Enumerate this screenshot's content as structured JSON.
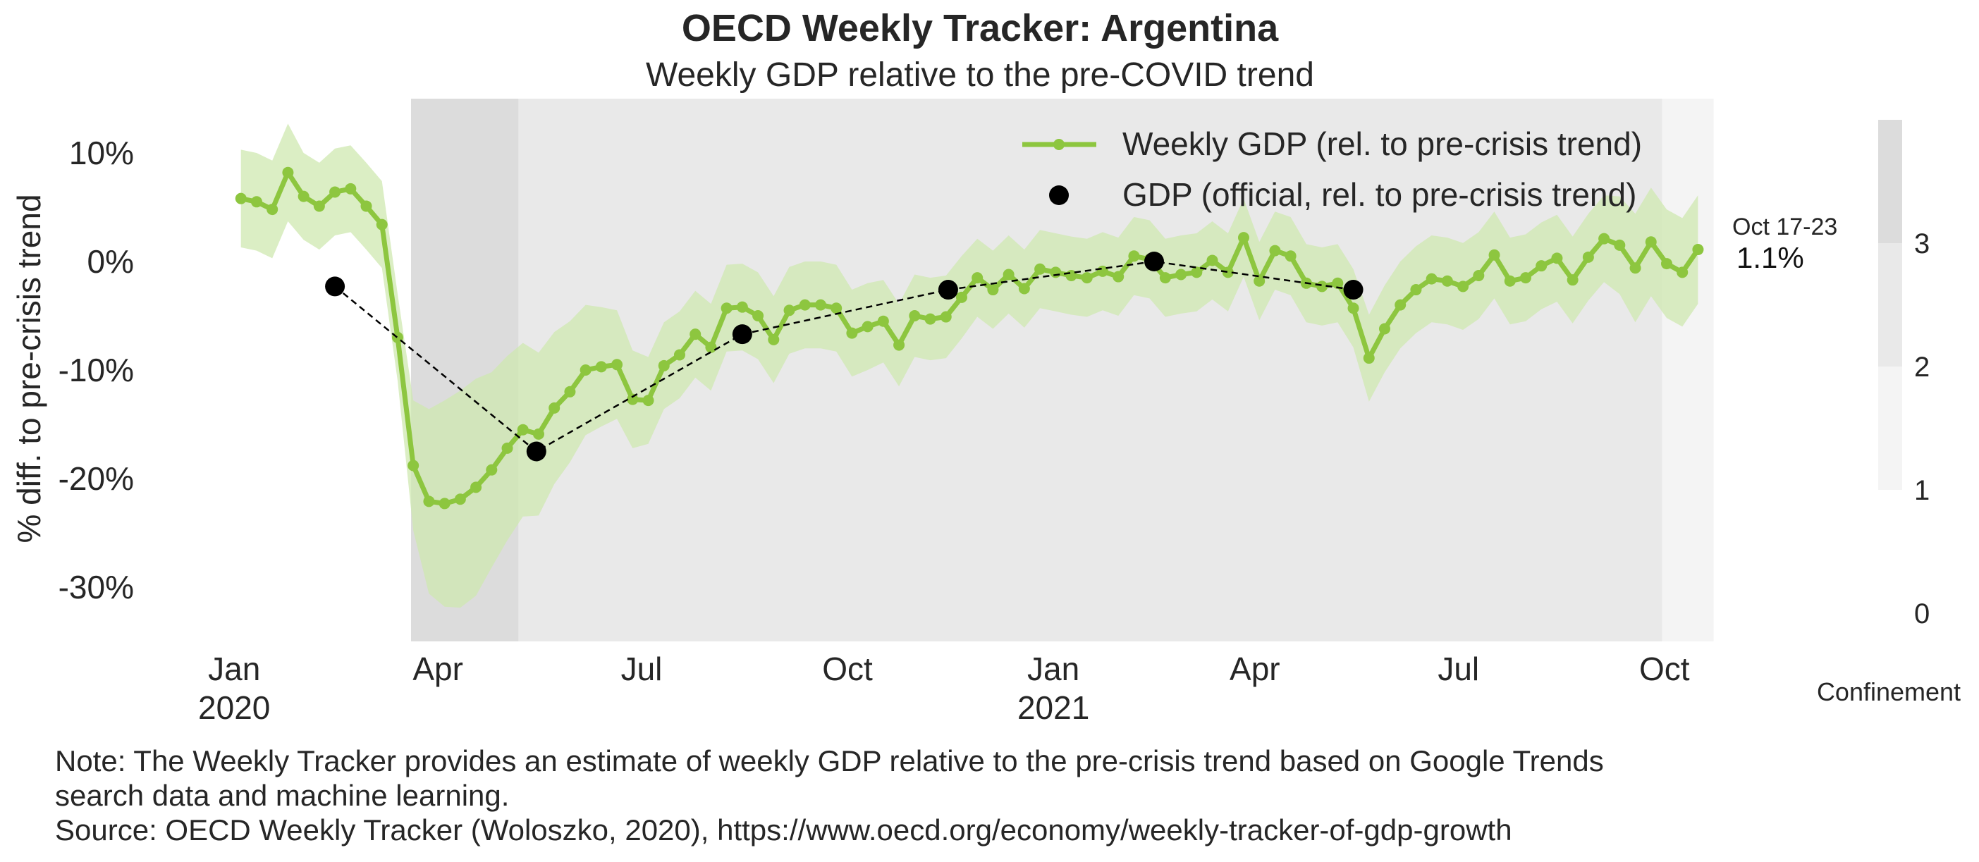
{
  "title": "OECD Weekly Tracker: Argentina",
  "subtitle": "Weekly GDP relative to the pre-COVID trend",
  "note_line1": "Note: The Weekly Tracker provides an estimate of weekly GDP relative to the pre-crisis trend based on Google Trends",
  "note_line2": "search data and machine learning.",
  "source": "Source: OECD Weekly Tracker (Woloszko, 2020), https://www.oecd.org/economy/weekly-tracker-of-gdp-growth",
  "last_point": {
    "date_label": "Oct 17-23",
    "value_label": "1.1%"
  },
  "colorbar": {
    "label": "Confinement",
    "ticks": [
      "0",
      "1",
      "2",
      "3"
    ]
  },
  "colors": {
    "weekly": "#8dc63f",
    "band": "#cfe8b0",
    "official": "#000000",
    "conf3": "#dcdcdc",
    "conf2": "#e9e9e9",
    "conf1": "#f4f4f4"
  },
  "chart_data": {
    "type": "line",
    "xlabel": "",
    "ylabel": "% diff. to pre-crisis trend",
    "ylim": [
      -35,
      15
    ],
    "yticks": [
      10,
      0,
      -10,
      -20,
      -30
    ],
    "ytick_labels": [
      "10%",
      "0%",
      "-10%",
      "-20%",
      "-30%"
    ],
    "xlim": [
      "2019-12-25",
      "2021-10-25"
    ],
    "xticks": [
      "2020-01-01",
      "2020-04-01",
      "2020-07-01",
      "2020-10-01",
      "2021-01-01",
      "2021-04-01",
      "2021-07-01",
      "2021-10-01"
    ],
    "xtick_labels": [
      [
        "Jan",
        "2020"
      ],
      [
        "Apr"
      ],
      [
        "Jul"
      ],
      [
        "Oct"
      ],
      [
        "Jan",
        "2021"
      ],
      [
        "Apr"
      ],
      [
        "Jul"
      ],
      [
        "Oct"
      ]
    ],
    "legend": {
      "placement": "top-right",
      "entries": [
        "Weekly GDP (rel. to pre-crisis trend)",
        "GDP (official, rel. to pre-crisis trend)"
      ]
    },
    "confinement_periods": [
      {
        "start": "2020-03-20",
        "end": "2020-05-07",
        "level": 3
      },
      {
        "start": "2020-05-07",
        "end": "2021-09-30",
        "level": 2
      },
      {
        "start": "2021-09-30",
        "end": "2021-10-23",
        "level": 1
      }
    ],
    "weekly_start": "2020-01-04",
    "weekly_step_days": 7,
    "weekly_values": [
      5.8,
      5.5,
      4.8,
      8.2,
      6.0,
      5.1,
      6.4,
      6.7,
      5.1,
      3.4,
      -7.0,
      -18.8,
      -22.1,
      -22.3,
      -21.9,
      -20.8,
      -19.2,
      -17.2,
      -15.5,
      -15.9,
      -13.5,
      -12.0,
      -10.0,
      -9.7,
      -9.5,
      -12.7,
      -12.8,
      -9.6,
      -8.6,
      -6.7,
      -7.9,
      -4.3,
      -4.2,
      -5.0,
      -7.2,
      -4.5,
      -4.0,
      -4.0,
      -4.3,
      -6.6,
      -6.0,
      -5.5,
      -7.7,
      -5.0,
      -5.3,
      -5.1,
      -3.3,
      -1.5,
      -2.6,
      -1.2,
      -2.5,
      -0.7,
      -1.0,
      -1.3,
      -1.5,
      -0.9,
      -1.4,
      0.5,
      0.2,
      -1.5,
      -1.2,
      -1.0,
      0.1,
      -1.0,
      2.2,
      -1.8,
      1.0,
      0.5,
      -2.0,
      -2.3,
      -2.0,
      -4.3,
      -8.9,
      -6.2,
      -4.0,
      -2.6,
      -1.6,
      -1.8,
      -2.3,
      -1.3,
      0.6,
      -1.8,
      -1.5,
      -0.4,
      0.3,
      -1.7,
      0.4,
      2.1,
      1.5,
      -0.6,
      1.8,
      -0.2,
      -1.0,
      1.1
    ],
    "band_halfwidth": [
      4.5,
      4.5,
      4.5,
      4.5,
      4.0,
      4.0,
      4.0,
      4.0,
      4.0,
      4.0,
      4.0,
      6.0,
      8.5,
      9.5,
      10.0,
      10.0,
      9.0,
      8.5,
      8.0,
      7.5,
      7.0,
      6.5,
      6.0,
      5.5,
      5.0,
      4.5,
      4.0,
      4.0,
      4.0,
      4.0,
      4.0,
      4.0,
      4.0,
      4.0,
      4.0,
      4.0,
      4.0,
      4.0,
      4.0,
      4.0,
      4.0,
      3.8,
      3.8,
      3.8,
      3.8,
      3.8,
      3.8,
      3.6,
      3.6,
      3.6,
      3.6,
      3.6,
      3.6,
      3.6,
      3.6,
      3.6,
      3.6,
      3.6,
      3.6,
      3.6,
      3.6,
      3.6,
      3.6,
      3.6,
      3.6,
      3.6,
      3.6,
      3.6,
      3.6,
      3.6,
      3.6,
      3.6,
      4.0,
      4.0,
      4.0,
      4.0,
      4.0,
      4.0,
      4.0,
      4.0,
      4.0,
      4.0,
      4.0,
      4.0,
      4.0,
      4.0,
      4.0,
      4.0,
      4.5,
      5.0,
      5.0,
      5.0,
      5.0,
      5.0
    ],
    "official_dates": [
      "2020-02-15",
      "2020-05-15",
      "2020-08-15",
      "2020-11-15",
      "2021-02-15",
      "2021-05-15"
    ],
    "official_values": [
      -2.3,
      -17.5,
      -6.7,
      -2.6,
      0.0,
      -2.6
    ]
  }
}
